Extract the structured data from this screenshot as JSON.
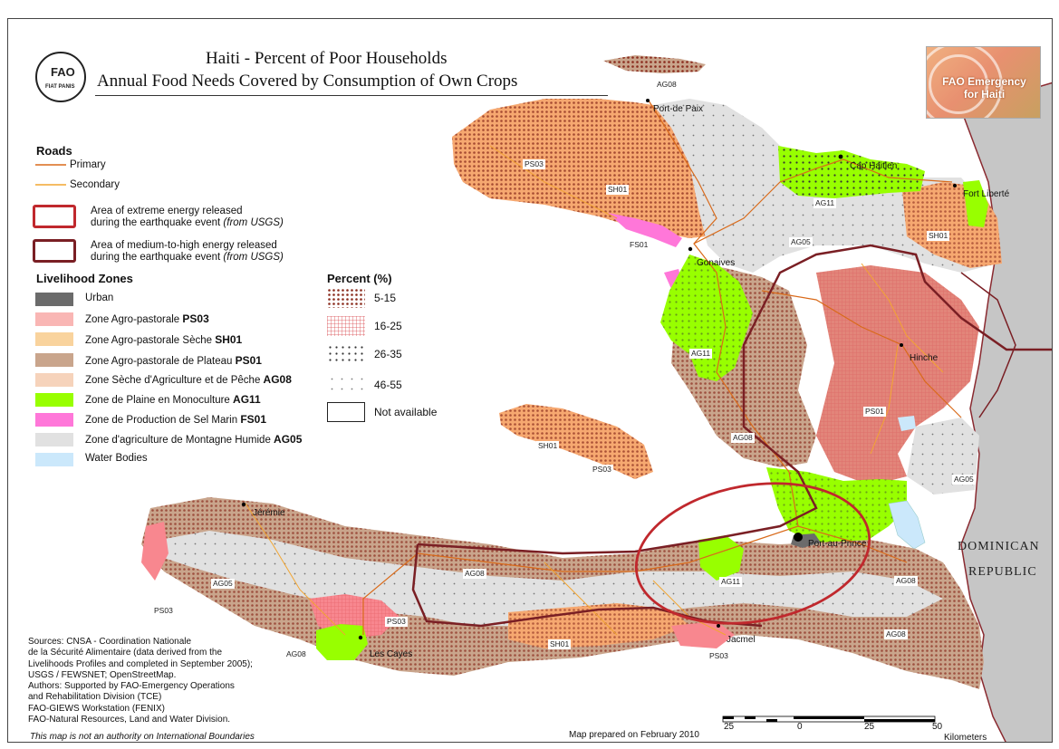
{
  "title": {
    "line1": "Haiti - Percent of Poor Households",
    "line2": "Annual Food Needs Covered by Consumption of Own Crops"
  },
  "logo": {
    "letters": "FAO",
    "motto": "FIAT PANIS"
  },
  "badge": {
    "line1": "FAO Emergency",
    "line2": "for Haiti"
  },
  "legend": {
    "roads": {
      "heading": "Roads",
      "primary": "Primary",
      "secondary": "Secondary",
      "primary_color": "#d96a1a",
      "secondary_color": "#f2a531"
    },
    "energy": {
      "extreme": {
        "line1": "Area of extreme energy released",
        "line2": "during the earthquake event",
        "source": "(from USGS)",
        "color": "#c0282d"
      },
      "medium": {
        "line1": "Area of medium-to-high energy released",
        "line2": "during the earthquake event",
        "source": "(from USGS)",
        "color": "#7a1f24"
      }
    },
    "zones": {
      "heading": "Livelihood Zones",
      "items": [
        {
          "name": "Urban",
          "code": "",
          "color": "#6b6b6b"
        },
        {
          "name": "Zone Agro-pastorale ",
          "code": "PS03",
          "color": "#f9b6b4"
        },
        {
          "name": "Zone Agro-pastorale Sèche ",
          "code": "SH01",
          "color": "#f9d39d"
        },
        {
          "name": "Zone Agro-pastorale de Plateau ",
          "code": "PS01",
          "color": "#c9a58c"
        },
        {
          "name": "Zone Sèche d'Agriculture et de Pêche ",
          "code": "AG08",
          "color": "#f6d3bb"
        },
        {
          "name": "Zone de Plaine en Monoculture ",
          "code": "AG11",
          "color": "#98ff00"
        },
        {
          "name": "Zone de Production de Sel Marin ",
          "code": "FS01",
          "color": "#ff77d9"
        },
        {
          "name": "Zone d'agriculture de Montagne Humide ",
          "code": "AG05",
          "color": "#e1e1e1"
        },
        {
          "name": "Water Bodies",
          "code": "",
          "color": "#cbe8fb"
        }
      ]
    },
    "percent": {
      "heading": "Percent (%)",
      "items": [
        {
          "label": "5-15",
          "pattern": "dense-dots"
        },
        {
          "label": "16-25",
          "pattern": "grid"
        },
        {
          "label": "26-35",
          "pattern": "medium-dots"
        },
        {
          "label": "46-55",
          "pattern": "sparse-dots"
        },
        {
          "label": "Not available",
          "pattern": "none"
        }
      ]
    }
  },
  "cities": {
    "port_de_paix": "Port-de Paix",
    "cap_haitien": "Cap Haitien",
    "fort_liberte": "Fort Liberté",
    "gonaives": "Gonaives",
    "hinche": "Hinche",
    "port_au_prince": "Port-au-Prince",
    "jeremie": "Jérémie",
    "les_cayes": "Les Cayes",
    "jacmel": "Jacmel"
  },
  "zone_labels": {
    "ag08_top": "AG08",
    "ps03_nw": "PS03",
    "sh01_nw": "SH01",
    "fs01": "FS01",
    "ag11_north": "AG11",
    "ag05_north": "AG05",
    "sh01_ne": "SH01",
    "ag11_central": "AG11",
    "ps01_central": "PS01",
    "ag08_central": "AG08",
    "sh01_gonave": "SH01",
    "ps03_gonave": "PS03",
    "ag05_east": "AG05",
    "ag05_west": "AG05",
    "ag08_south": "AG08",
    "ag11_south": "AG11",
    "ag08_se": "AG08",
    "ps03_far_west": "PS03",
    "ps03_south": "PS03",
    "sh01_south": "SH01",
    "ag08_sw": "AG08",
    "ps03_jacmel": "PS03",
    "ag08_east_south": "AG08"
  },
  "country": {
    "line1": "DOMINICAN",
    "line2": "REPUBLIC"
  },
  "sources": [
    "Sources: CNSA - Coordination Nationale",
    "de la Sécurité Alimentaire (data derived from the",
    "Livelihoods Profiles and completed in September 2005);",
    "USGS / FEWSNET; OpenStreetMap.",
    "Authors:  Supported by FAO-Emergency Operations",
    "and  Rehabilitation Division (TCE)",
    "FAO-GIEWS Workstation (FENIX)",
    "FAO-Natural Resources, Land and Water Division."
  ],
  "disclaimer": "This map is not an authority on International Boundaries",
  "prepared": "Map prepared on February 2010",
  "scale": {
    "labels": [
      "25",
      "0",
      "25",
      "50"
    ],
    "unit": "Kilometers"
  }
}
